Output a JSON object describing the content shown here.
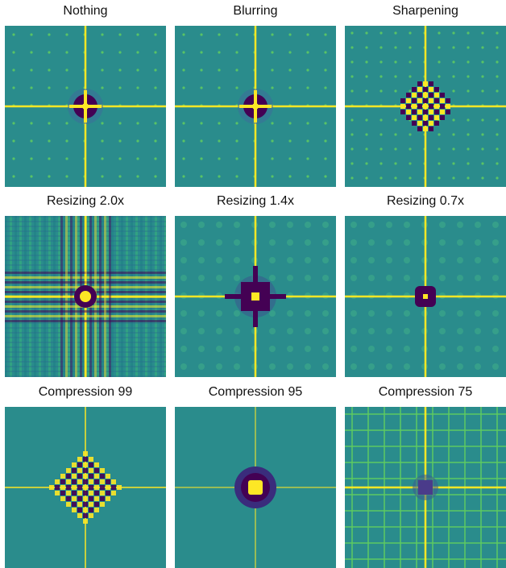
{
  "panels": [
    {
      "title": "Nothing",
      "pattern": "dots",
      "center": "ring-dark"
    },
    {
      "title": "Blurring",
      "pattern": "dots",
      "center": "ring-dark"
    },
    {
      "title": "Sharpening",
      "pattern": "dots-dense",
      "center": "checker"
    },
    {
      "title": "Resizing 2.0x",
      "pattern": "stripes",
      "center": "cross-burst"
    },
    {
      "title": "Resizing 1.4x",
      "pattern": "dots-soft",
      "center": "cross-burst-small"
    },
    {
      "title": "Resizing 0.7x",
      "pattern": "dots-soft",
      "center": "small-blob"
    },
    {
      "title": "Compression 99",
      "pattern": "plain",
      "center": "diamond"
    },
    {
      "title": "Compression 95",
      "pattern": "plain",
      "center": "dark-halo"
    },
    {
      "title": "Compression 75",
      "pattern": "grid-lines",
      "center": "small-ring"
    }
  ],
  "colors": {
    "background": "#2a8c8c",
    "bright": "#fde725",
    "mid": "#5ec962",
    "dark": "#3b0f70",
    "darkest": "#440154",
    "teal": "#21918c"
  }
}
